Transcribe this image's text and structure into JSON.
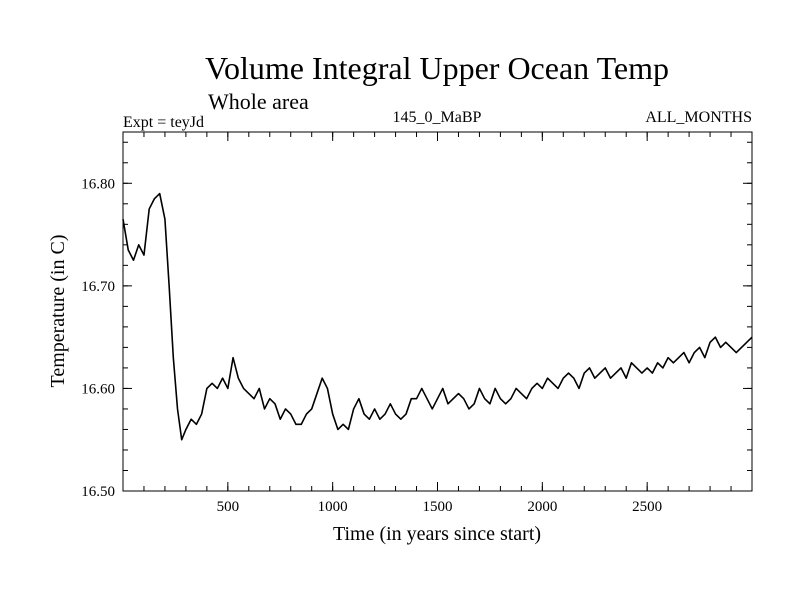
{
  "chart_data": {
    "type": "line",
    "title": "Volume Integral Upper Ocean Temp",
    "subtitle": "Whole area",
    "left_label": "Expt = teyJd",
    "center_label": "145_0_MaBP",
    "right_label": "ALL_MONTHS",
    "xlabel": "Time (in years since start)",
    "ylabel": "Temperature (in C)",
    "xlim": [
      0,
      3000
    ],
    "ylim": [
      16.5,
      16.85
    ],
    "x_ticks": [
      500,
      1000,
      1500,
      2000,
      2500
    ],
    "x_tick_labels": [
      "500",
      "1000",
      "1500",
      "2000",
      "2500"
    ],
    "y_ticks": [
      16.5,
      16.6,
      16.7,
      16.8
    ],
    "y_tick_labels": [
      "16.50",
      "16.60",
      "16.70",
      "16.80"
    ],
    "grid": false,
    "line_color": "#000000",
    "series": [
      {
        "name": "teyJd",
        "x": [
          0,
          25,
          50,
          75,
          100,
          125,
          150,
          175,
          200,
          220,
          240,
          260,
          280,
          300,
          325,
          350,
          375,
          400,
          425,
          450,
          475,
          500,
          525,
          550,
          575,
          600,
          625,
          650,
          675,
          700,
          725,
          750,
          775,
          800,
          825,
          850,
          875,
          900,
          925,
          950,
          975,
          1000,
          1025,
          1050,
          1075,
          1100,
          1125,
          1150,
          1175,
          1200,
          1225,
          1250,
          1275,
          1300,
          1325,
          1350,
          1375,
          1400,
          1425,
          1450,
          1475,
          1500,
          1525,
          1550,
          1575,
          1600,
          1625,
          1650,
          1675,
          1700,
          1725,
          1750,
          1775,
          1800,
          1825,
          1850,
          1875,
          1900,
          1925,
          1950,
          1975,
          2000,
          2025,
          2050,
          2075,
          2100,
          2125,
          2150,
          2175,
          2200,
          2225,
          2250,
          2275,
          2300,
          2325,
          2350,
          2375,
          2400,
          2425,
          2450,
          2475,
          2500,
          2525,
          2550,
          2575,
          2600,
          2625,
          2650,
          2675,
          2700,
          2725,
          2750,
          2775,
          2800,
          2825,
          2850,
          2875,
          2900,
          2925,
          2950,
          2975,
          3000
        ],
        "values": [
          16.765,
          16.735,
          16.725,
          16.74,
          16.73,
          16.775,
          16.785,
          16.79,
          16.765,
          16.7,
          16.63,
          16.58,
          16.55,
          16.56,
          16.57,
          16.565,
          16.575,
          16.6,
          16.605,
          16.6,
          16.61,
          16.6,
          16.63,
          16.61,
          16.6,
          16.595,
          16.59,
          16.6,
          16.58,
          16.59,
          16.585,
          16.57,
          16.58,
          16.575,
          16.565,
          16.565,
          16.575,
          16.58,
          16.595,
          16.61,
          16.6,
          16.575,
          16.56,
          16.565,
          16.56,
          16.58,
          16.59,
          16.575,
          16.57,
          16.58,
          16.57,
          16.575,
          16.585,
          16.575,
          16.57,
          16.575,
          16.59,
          16.59,
          16.6,
          16.59,
          16.58,
          16.59,
          16.6,
          16.585,
          16.59,
          16.595,
          16.59,
          16.58,
          16.585,
          16.6,
          16.59,
          16.585,
          16.6,
          16.59,
          16.585,
          16.59,
          16.6,
          16.595,
          16.59,
          16.6,
          16.605,
          16.6,
          16.61,
          16.605,
          16.6,
          16.61,
          16.615,
          16.61,
          16.6,
          16.615,
          16.62,
          16.61,
          16.615,
          16.62,
          16.61,
          16.615,
          16.62,
          16.61,
          16.625,
          16.62,
          16.615,
          16.62,
          16.615,
          16.625,
          16.62,
          16.63,
          16.625,
          16.63,
          16.635,
          16.625,
          16.635,
          16.64,
          16.63,
          16.645,
          16.65,
          16.64,
          16.645,
          16.64,
          16.635,
          16.64,
          16.645,
          16.65
        ]
      }
    ]
  }
}
